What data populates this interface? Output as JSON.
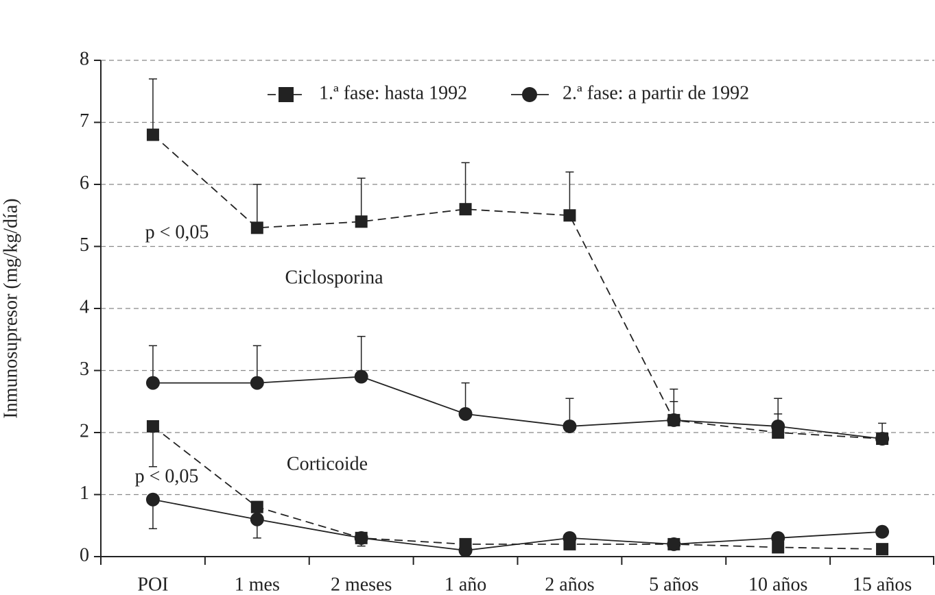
{
  "chart_data": {
    "type": "line",
    "y_label": "Inmunosupresor (mg/kg/día)",
    "categories": [
      "POI",
      "1 mes",
      "2 meses",
      "1 año",
      "2 años",
      "5 años",
      "10 años",
      "15 años"
    ],
    "ylim": [
      0,
      8
    ],
    "yticks": [
      0,
      1,
      2,
      3,
      4,
      5,
      6,
      7,
      8
    ],
    "grid": true,
    "color": "#222222",
    "legend": [
      {
        "name": "1.ª fase: hasta 1992",
        "marker": "square",
        "dashed": true
      },
      {
        "name": "2.ª fase: a partir de 1992",
        "marker": "circle",
        "dashed": false
      }
    ],
    "groups": [
      {
        "label": "Ciclosporina",
        "note": "p < 0,05",
        "error_direction": "up",
        "series": [
          {
            "values": [
              6.8,
              5.3,
              5.4,
              5.6,
              5.5,
              2.2,
              2.0,
              1.9
            ],
            "errors": [
              0.9,
              0.7,
              0.7,
              0.75,
              0.7,
              0.5,
              0.55,
              0.25
            ]
          },
          {
            "values": [
              2.8,
              2.8,
              2.9,
              2.3,
              2.1,
              2.2,
              2.1,
              1.9
            ],
            "errors": [
              0.6,
              0.6,
              0.65,
              0.5,
              0.45,
              0.3,
              0.2,
              null
            ]
          }
        ]
      },
      {
        "label": "Corticoide",
        "note": "p < 0,05",
        "error_direction": "down",
        "series": [
          {
            "values": [
              2.1,
              0.8,
              0.3,
              0.2,
              0.2,
              0.2,
              0.15,
              0.12
            ],
            "errors": [
              0.65,
              null,
              0.13,
              null,
              null,
              null,
              null,
              null
            ]
          },
          {
            "values": [
              0.92,
              0.6,
              0.3,
              0.1,
              0.3,
              0.2,
              0.3,
              0.4
            ],
            "errors": [
              0.47,
              0.3,
              null,
              null,
              null,
              null,
              null,
              null
            ]
          }
        ]
      }
    ]
  }
}
